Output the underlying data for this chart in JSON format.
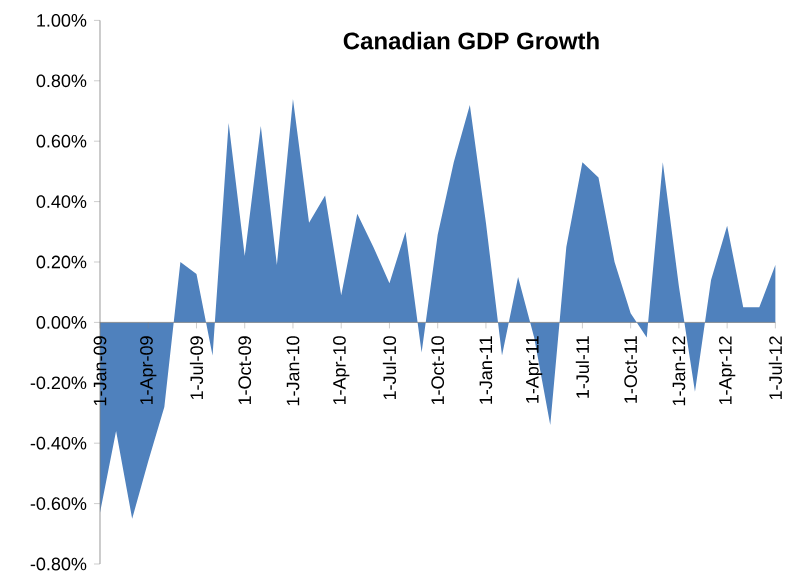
{
  "chart_data": {
    "type": "area",
    "title": "Canadian GDP Growth",
    "categories": [
      "1-Jan-09",
      null,
      null,
      "1-Apr-09",
      null,
      null,
      "1-Jul-09",
      null,
      null,
      "1-Oct-09",
      null,
      null,
      "1-Jan-10",
      null,
      null,
      "1-Apr-10",
      null,
      null,
      "1-Jul-10",
      null,
      null,
      "1-Oct-10",
      null,
      null,
      "1-Jan-11",
      null,
      null,
      "1-Apr-11",
      null,
      null,
      "1-Jul-11",
      null,
      null,
      "1-Oct-11",
      null,
      null,
      "1-Jan-12",
      null,
      null,
      "1-Apr-12",
      null,
      null,
      "1-Jul-12"
    ],
    "values": [
      -0.63,
      -0.36,
      -0.65,
      -0.46,
      -0.28,
      0.2,
      0.16,
      -0.11,
      0.66,
      0.22,
      0.65,
      0.19,
      0.74,
      0.33,
      0.42,
      0.09,
      0.36,
      0.25,
      0.13,
      0.3,
      -0.1,
      0.29,
      0.53,
      0.72,
      0.33,
      -0.11,
      0.15,
      -0.05,
      -0.34,
      0.25,
      0.53,
      0.48,
      0.2,
      0.03,
      -0.05,
      0.53,
      0.12,
      -0.23,
      0.14,
      0.32,
      0.05,
      0.05,
      0.19
    ],
    "color": "#4f81bd",
    "ylim": [
      -0.8,
      1.0
    ],
    "yticks": [
      {
        "value": -0.8,
        "label": "-0.80%"
      },
      {
        "value": -0.6,
        "label": "-0.60%"
      },
      {
        "value": -0.4,
        "label": "-0.40%"
      },
      {
        "value": -0.2,
        "label": "-0.20%"
      },
      {
        "value": 0,
        "label": "0.00%"
      },
      {
        "value": 0.2,
        "label": "0.20%"
      },
      {
        "value": 0.4,
        "label": "0.40%"
      },
      {
        "value": 0.6,
        "label": "0.60%"
      },
      {
        "value": 0.8,
        "label": "0.80%"
      },
      {
        "value": 1.0,
        "label": "1.00%"
      }
    ]
  }
}
